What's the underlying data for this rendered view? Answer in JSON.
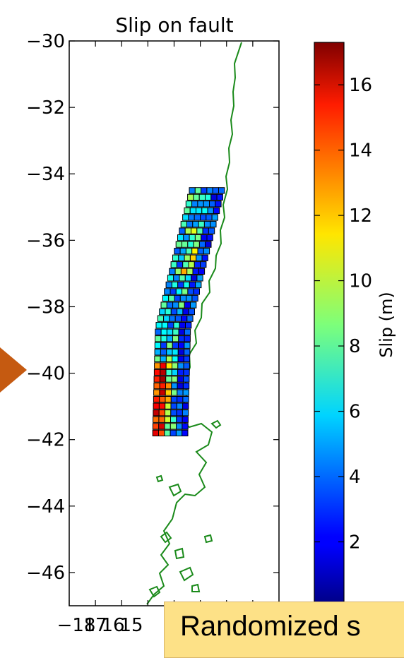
{
  "chart_data": {
    "type": "heatmap",
    "title": "Slip on fault",
    "ylim": [
      -47,
      -30
    ],
    "yticks": [
      -30,
      -32,
      -34,
      -36,
      -38,
      -40,
      -42,
      -44,
      -46
    ],
    "ytick_labels": [
      "−30",
      "−32",
      "−34",
      "−36",
      "−38",
      "−40",
      "−42",
      "−44",
      "−46"
    ],
    "xtick_labels": [
      "−18",
      "17",
      "16",
      "15"
    ],
    "colorbar": {
      "label": "Slip (m)",
      "range": [
        0,
        17.3
      ],
      "ticks": [
        2,
        4,
        6,
        8,
        10,
        12,
        14,
        16
      ],
      "colormap": "jet"
    },
    "fault_grid": {
      "rows_north_to_south": 37,
      "columns_west_to_east": 6,
      "lat_range": [
        -41.8,
        -34.5
      ],
      "slip_pattern": "high slip (13-17 m) on the western (deep) columns near -40 to -41.5 latitude; moderate slip (6-9 m) elsewhere; low slip (2-4 m) on eastern columns"
    },
    "coastline_color": "#1a8a1a"
  },
  "banner": {
    "text": "Randomized s"
  }
}
